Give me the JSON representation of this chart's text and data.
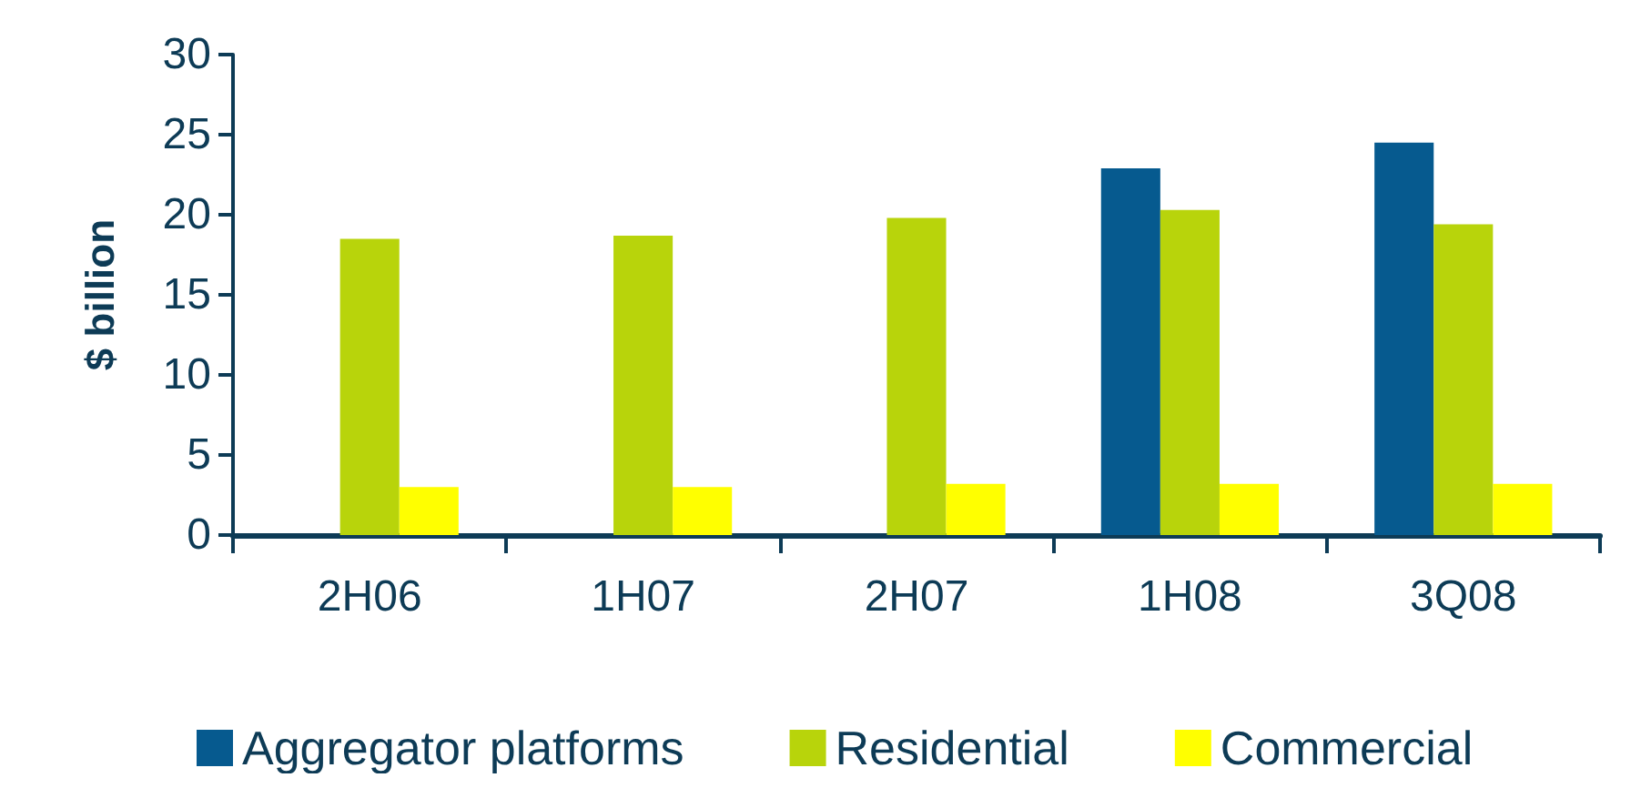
{
  "chart_data": {
    "type": "bar",
    "ylabel": "$ billion",
    "categories": [
      "2H06",
      "1H07",
      "2H07",
      "1H08",
      "3Q08"
    ],
    "series": [
      {
        "name": "Aggregator platforms",
        "color": "#065a8f",
        "values": [
          null,
          null,
          null,
          22.9,
          24.5
        ]
      },
      {
        "name": "Residential",
        "color": "#b8d40b",
        "values": [
          18.5,
          18.7,
          19.8,
          20.3,
          19.4
        ]
      },
      {
        "name": "Commercial",
        "color": "#ffff00",
        "values": [
          3.0,
          3.0,
          3.2,
          3.2,
          3.2
        ]
      }
    ],
    "ylim": [
      0,
      30
    ],
    "yticks": [
      0,
      5,
      10,
      15,
      20,
      25,
      30
    ],
    "grid": false,
    "legend": "bottom"
  }
}
